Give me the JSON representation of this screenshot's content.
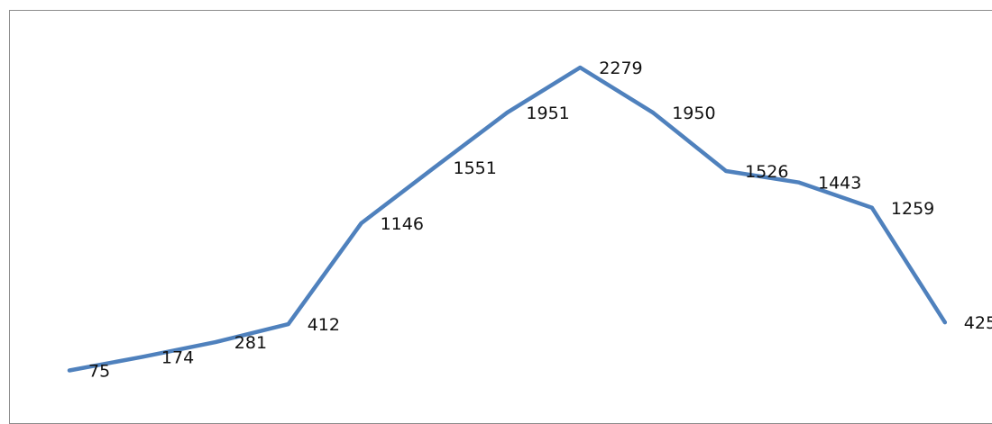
{
  "chart_data": {
    "type": "line",
    "title": "",
    "xlabel": "",
    "ylabel": "",
    "grid": false,
    "legend": "none",
    "series": [
      {
        "color": "#4f81bd",
        "values": [
          75,
          174,
          281,
          412,
          1146,
          1551,
          1951,
          2279,
          1950,
          1526,
          1443,
          1259,
          425
        ],
        "labels": [
          "75",
          "174",
          "281",
          "412",
          "1146",
          "1551",
          "1951",
          "2279",
          "1950",
          "1526",
          "1443",
          "1259",
          "425"
        ]
      }
    ]
  }
}
